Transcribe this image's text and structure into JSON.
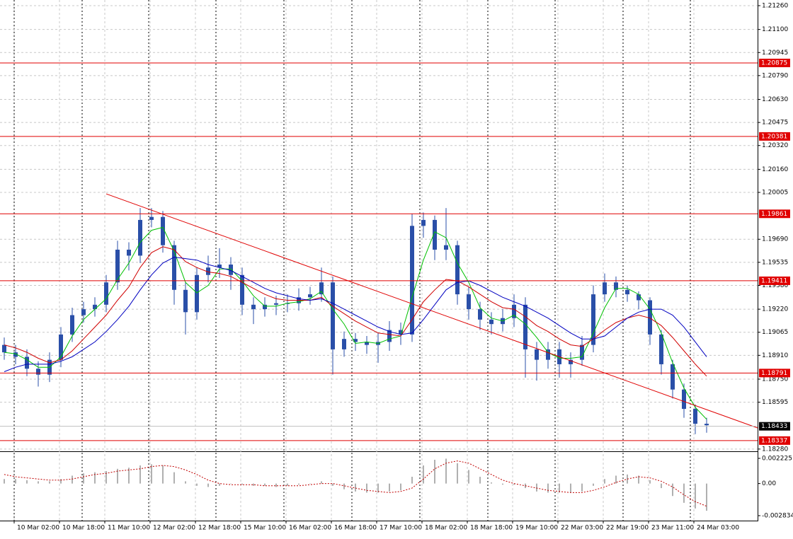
{
  "chart_data": [
    {
      "type": "candlestick",
      "color": "#2a4fa8",
      "grid": true,
      "xlim": [
        -0.375,
        66.5
      ],
      "ylim": [
        1.18265,
        1.21298
      ],
      "open": [
        1.1898,
        1.1893,
        1.189,
        1.1882,
        1.1878,
        1.1888,
        1.1905,
        1.1918,
        1.1922,
        1.1925,
        1.194,
        1.1962,
        1.1958,
        1.1982,
        1.1984,
        1.1965,
        1.1935,
        1.192,
        1.1945,
        1.195,
        1.1952,
        1.1945,
        1.1925,
        1.1922,
        1.1925,
        1.1926,
        1.1926,
        1.193,
        1.1932,
        1.194,
        1.1895,
        1.1902,
        1.19,
        1.1898,
        1.19,
        1.1908,
        1.1905,
        1.1978,
        1.1982,
        1.1962,
        1.1965,
        1.1932,
        1.1922,
        1.1915,
        1.1912,
        1.1916,
        1.1925,
        1.1895,
        1.1888,
        1.1895,
        1.1885,
        1.1888,
        1.1898,
        1.1932,
        1.194,
        1.1935,
        1.1932,
        1.1928,
        1.1905,
        1.1885,
        1.1868,
        1.1855,
        1.1845
      ],
      "high": [
        1.1903,
        1.1898,
        1.1895,
        1.1887,
        1.1893,
        1.191,
        1.1923,
        1.1927,
        1.193,
        1.1945,
        1.1968,
        1.1967,
        1.199,
        1.199,
        1.1988,
        1.1968,
        1.194,
        1.195,
        1.1958,
        1.1963,
        1.1957,
        1.195,
        1.193,
        1.193,
        1.1931,
        1.1932,
        1.1936,
        1.1937,
        1.195,
        1.1944,
        1.1907,
        1.1906,
        1.1904,
        1.1906,
        1.1914,
        1.1913,
        1.1986,
        1.1987,
        1.1985,
        1.199,
        1.1968,
        1.1937,
        1.1927,
        1.192,
        1.1922,
        1.1932,
        1.193,
        1.19,
        1.19,
        1.19,
        1.1893,
        1.1904,
        1.1938,
        1.1946,
        1.1944,
        1.1938,
        1.1934,
        1.193,
        1.1908,
        1.1888,
        1.1872,
        1.1858,
        1.1849
      ],
      "low": [
        1.1888,
        1.1885,
        1.1877,
        1.187,
        1.1873,
        1.1883,
        1.19,
        1.1913,
        1.1917,
        1.192,
        1.1935,
        1.1948,
        1.1953,
        1.1977,
        1.196,
        1.1925,
        1.1905,
        1.1915,
        1.194,
        1.1943,
        1.1935,
        1.1918,
        1.1912,
        1.1917,
        1.1918,
        1.192,
        1.1921,
        1.1925,
        1.1927,
        1.1878,
        1.189,
        1.1894,
        1.1892,
        1.1886,
        1.1894,
        1.1898,
        1.19,
        1.197,
        1.1955,
        1.1955,
        1.1925,
        1.1915,
        1.1908,
        1.1905,
        1.1907,
        1.191,
        1.1876,
        1.1874,
        1.1882,
        1.1876,
        1.1876,
        1.1884,
        1.1893,
        1.1927,
        1.193,
        1.1927,
        1.1922,
        1.1898,
        1.1878,
        1.1862,
        1.1849,
        1.1838,
        1.1839
      ],
      "close": [
        1.1893,
        1.189,
        1.1882,
        1.1878,
        1.1888,
        1.1905,
        1.1918,
        1.1922,
        1.1925,
        1.194,
        1.1962,
        1.1958,
        1.1982,
        1.1984,
        1.1965,
        1.1935,
        1.192,
        1.1945,
        1.195,
        1.1952,
        1.1945,
        1.1925,
        1.1922,
        1.1925,
        1.1926,
        1.1926,
        1.193,
        1.1932,
        1.194,
        1.1895,
        1.1902,
        1.19,
        1.1898,
        1.19,
        1.1908,
        1.1905,
        1.1978,
        1.1982,
        1.1962,
        1.1965,
        1.1932,
        1.1922,
        1.1915,
        1.1912,
        1.1916,
        1.1925,
        1.1895,
        1.1888,
        1.1895,
        1.1885,
        1.1888,
        1.1898,
        1.1932,
        1.194,
        1.1935,
        1.1932,
        1.1928,
        1.1905,
        1.1885,
        1.1868,
        1.1855,
        1.1845,
        1.1844
      ],
      "series": [
        {
          "color": "#00c000",
          "values": [
            1.1893,
            1.1892,
            1.1888,
            1.1883,
            1.1883,
            1.189,
            1.1904,
            1.1915,
            1.1922,
            1.1929,
            1.1942,
            1.1953,
            1.1967,
            1.1975,
            1.1977,
            1.1961,
            1.194,
            1.1933,
            1.1938,
            1.1949,
            1.1949,
            1.1941,
            1.1931,
            1.1924,
            1.1924,
            1.1926,
            1.1927,
            1.1929,
            1.1934,
            1.1922,
            1.1912,
            1.1899,
            1.19,
            1.1899,
            1.1902,
            1.1904,
            1.193,
            1.1955,
            1.1974,
            1.197,
            1.1953,
            1.194,
            1.1923,
            1.1916,
            1.1914,
            1.1918,
            1.1912,
            1.1903,
            1.1893,
            1.1889,
            1.1889,
            1.189,
            1.1906,
            1.1923,
            1.1936,
            1.1936,
            1.1932,
            1.1922,
            1.1906,
            1.1886,
            1.1869,
            1.1856,
            1.1848
          ]
        },
        {
          "color": "#d00000",
          "values": [
            1.1898,
            1.1896,
            1.1893,
            1.1889,
            1.1886,
            1.1888,
            1.1894,
            1.1902,
            1.191,
            1.1918,
            1.1928,
            1.1937,
            1.195,
            1.196,
            1.1964,
            1.1962,
            1.1954,
            1.195,
            1.1947,
            1.1946,
            1.1944,
            1.194,
            1.1936,
            1.1932,
            1.1929,
            1.1928,
            1.1928,
            1.1928,
            1.193,
            1.1924,
            1.1919,
            1.1914,
            1.191,
            1.1906,
            1.1905,
            1.1904,
            1.1915,
            1.1927,
            1.1935,
            1.1942,
            1.1941,
            1.1937,
            1.1932,
            1.1927,
            1.1923,
            1.1922,
            1.1917,
            1.1911,
            1.1907,
            1.1902,
            1.1898,
            1.1897,
            1.1902,
            1.1908,
            1.1913,
            1.1916,
            1.1918,
            1.1916,
            1.1911,
            1.1903,
            1.1894,
            1.1885,
            1.1877
          ]
        },
        {
          "color": "#0000c0",
          "values": [
            1.188,
            1.1883,
            1.1885,
            1.1885,
            1.1885,
            1.1887,
            1.189,
            1.1895,
            1.19,
            1.1907,
            1.1915,
            1.1924,
            1.1935,
            1.1945,
            1.1953,
            1.1957,
            1.1956,
            1.1955,
            1.1952,
            1.195,
            1.1948,
            1.1944,
            1.194,
            1.1936,
            1.1933,
            1.1931,
            1.1929,
            1.1928,
            1.1929,
            1.1926,
            1.1922,
            1.1918,
            1.1914,
            1.191,
            1.1907,
            1.1905,
            1.1906,
            1.1915,
            1.1925,
            1.1935,
            1.194,
            1.1941,
            1.1938,
            1.1934,
            1.193,
            1.1927,
            1.1924,
            1.192,
            1.1916,
            1.1911,
            1.1906,
            1.1902,
            1.1902,
            1.1904,
            1.191,
            1.1916,
            1.192,
            1.1922,
            1.1922,
            1.1918,
            1.191,
            1.19,
            1.189
          ]
        }
      ],
      "yticks": [
        {
          "value": 1.2126,
          "label": "1.21260"
        },
        {
          "value": 1.211,
          "label": "1.21100"
        },
        1.20945,
        {
          "value": 1.2079,
          "label": "1.20790"
        },
        {
          "value": 1.2063,
          "label": "1.20630"
        },
        1.20475,
        {
          "value": 1.2032,
          "label": "1.20320"
        },
        {
          "value": 1.2016,
          "label": "1.20160"
        },
        1.20005,
        {
          "value": 1.1969,
          "label": "1.19690"
        },
        1.19535,
        {
          "value": 1.1938,
          "label": "1.19380"
        },
        {
          "value": 1.1922,
          "label": "1.19220"
        },
        1.19065,
        {
          "value": 1.1891,
          "label": "1.18910"
        },
        {
          "value": 1.1875,
          "label": "1.18750"
        },
        1.18595,
        {
          "value": 1.1828,
          "label": "1.18280"
        }
      ],
      "xticks": [
        {
          "value": 0.875,
          "label": "10 Mar 02:00"
        },
        {
          "value": 4.875,
          "label": "10 Mar 18:00"
        },
        {
          "value": 8.875,
          "label": "11 Mar 10:00"
        },
        {
          "value": 12.875,
          "label": "12 Mar 02:00"
        },
        {
          "value": 16.875,
          "label": "12 Mar 18:00"
        },
        {
          "value": 20.875,
          "label": "15 Mar 10:00"
        },
        {
          "value": 24.875,
          "label": "16 Mar 02:00"
        },
        {
          "value": 28.875,
          "label": "16 Mar 18:00"
        },
        {
          "value": 32.875,
          "label": "17 Mar 10:00"
        },
        {
          "value": 36.875,
          "label": "18 Mar 02:00"
        },
        {
          "value": 40.875,
          "label": "18 Mar 18:00"
        },
        {
          "value": 44.875,
          "label": "19 Mar 10:00"
        },
        {
          "value": 48.875,
          "label": "22 Mar 03:00"
        },
        {
          "value": 52.875,
          "label": "22 Mar 19:00"
        },
        {
          "value": 56.875,
          "label": "23 Mar 11:00"
        },
        {
          "value": 60.875,
          "label": "24 Mar 03:00"
        }
      ],
      "separators": [
        0.875,
        6.875,
        12.75,
        18.6875,
        24.6875,
        30.6875,
        36.6875,
        42.6875,
        48.625,
        54.625,
        60.5625
      ],
      "levels": [
        1.20875,
        1.20381,
        1.19861,
        1.19411,
        1.18791,
        1.18337
      ],
      "level_color": "#e00000",
      "last": 1.18433,
      "last_color": "#c0c0c0",
      "trendline": {
        "x": [
          9.0,
          66.5
        ],
        "y": [
          1.19995,
          1.18422
        ],
        "color": "#e00000"
      }
    },
    {
      "type": "bar",
      "color": "#b0b0b0",
      "xlim": [
        -0.375,
        66.5
      ],
      "ylim": [
        -0.003271,
        0.002725
      ],
      "values": [
        0.0004,
        0.0004,
        0.0003,
        0.0002,
        0.0002,
        0.0004,
        0.0007,
        0.0009,
        0.001,
        0.0011,
        0.0013,
        0.0014,
        0.0016,
        0.0017,
        0.0016,
        0.001,
        0.0002,
        -0.0002,
        -0.0003,
        -0.0002,
        0.0,
        -0.0001,
        -0.0002,
        -0.0002,
        -0.0003,
        -0.0002,
        -0.0001,
        0.0,
        0.0002,
        -0.0002,
        -0.0005,
        -0.0007,
        -0.0008,
        -0.0008,
        -0.0007,
        -0.0006,
        0.0006,
        0.0016,
        0.0021,
        0.0022,
        0.0018,
        0.0012,
        0.0006,
        0.0001,
        -0.0001,
        -0.0001,
        -0.0004,
        -0.0007,
        -0.0008,
        -0.0008,
        -0.0008,
        -0.0007,
        -0.0002,
        0.0004,
        0.0007,
        0.0008,
        0.0007,
        0.0003,
        -0.0004,
        -0.0011,
        -0.0017,
        -0.0022,
        -0.0024
      ],
      "series": [
        {
          "color": "#c00000",
          "values": [
            0.0008,
            0.0006,
            0.0005,
            0.0004,
            0.0003,
            0.0003,
            0.0004,
            0.0006,
            0.0008,
            0.0009,
            0.0011,
            0.0012,
            0.0013,
            0.0015,
            0.0016,
            0.0015,
            0.0012,
            0.0008,
            0.0003,
            0.0,
            -0.0001,
            -0.0001,
            -0.0001,
            -0.0002,
            -0.0002,
            -0.0002,
            -0.0002,
            -0.0001,
            0.0,
            0.0,
            -0.0002,
            -0.0004,
            -0.0006,
            -0.0007,
            -0.0008,
            -0.0007,
            -0.0004,
            0.0004,
            0.0013,
            0.0018,
            0.002,
            0.0018,
            0.0013,
            0.0008,
            0.0003,
            0.0,
            -0.0002,
            -0.0004,
            -0.0006,
            -0.0007,
            -0.0008,
            -0.0008,
            -0.0006,
            -0.0003,
            0.0001,
            0.0004,
            0.0006,
            0.0005,
            0.0002,
            -0.0003,
            -0.001,
            -0.0016,
            -0.002
          ]
        }
      ],
      "yticks": [
        0.002225,
        {
          "value": 0,
          "label": "0.00"
        },
        -0.002834
      ]
    }
  ]
}
